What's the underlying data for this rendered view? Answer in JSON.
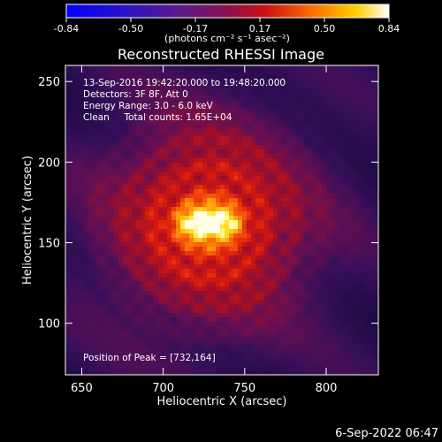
{
  "chart_data": {
    "type": "heatmap",
    "title": "Reconstructed RHESSI Image",
    "xlabel": "Heliocentric X (arcsec)",
    "ylabel": "Heliocentric Y (arcsec)",
    "xlim": [
      640,
      832
    ],
    "ylim": [
      68,
      260
    ],
    "x_ticks": [
      650,
      700,
      750,
      800
    ],
    "y_ticks": [
      100,
      150,
      200,
      250
    ],
    "colorbar": {
      "label": "(photons cm⁻² s⁻¹ asec⁻²)",
      "min": -0.84,
      "max": 0.84,
      "ticks": [
        "-0.84",
        "-0.50",
        "-0.17",
        "0.17",
        "0.50",
        "0.84"
      ],
      "colormap": "sunburst (blue-purple-red-orange-yellow-white)"
    },
    "annotations": [
      "13-Sep-2016 19:42:20.000 to 19:48:20.000",
      "Detectors: 3F 8F, Att 0",
      "Energy Range: 3.0 - 6.0 keV",
      "Clean     Total counts: 1.65E+04"
    ],
    "peak": {
      "x": 732,
      "y": 164
    },
    "peak_label": "Position of Peak = [732,164]",
    "source": {
      "center_x": 728,
      "center_y": 162,
      "core_width_arcsec": 22,
      "halo_width_arcsec": 110
    }
  },
  "footer_date": "6-Sep-2022 06:47"
}
